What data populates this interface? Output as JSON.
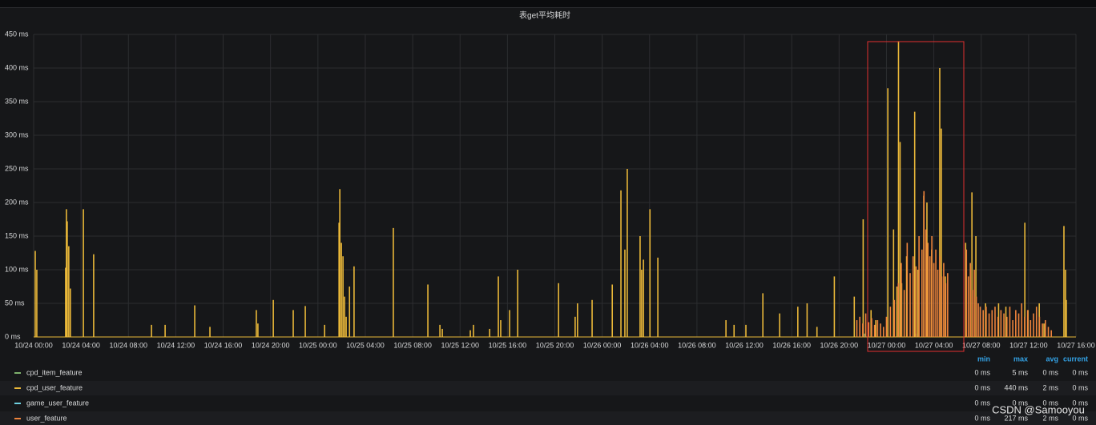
{
  "chart_data": {
    "type": "line",
    "title": "表get平均耗时",
    "xlim": [
      "10/24 00:00",
      "10/27 16:00"
    ],
    "xticks": [
      "10/24 00:00",
      "10/24 04:00",
      "10/24 08:00",
      "10/24 12:00",
      "10/24 16:00",
      "10/24 20:00",
      "10/25 00:00",
      "10/25 04:00",
      "10/25 08:00",
      "10/25 12:00",
      "10/25 16:00",
      "10/25 20:00",
      "10/26 00:00",
      "10/26 04:00",
      "10/26 08:00",
      "10/26 12:00",
      "10/26 16:00",
      "10/26 20:00",
      "10/27 00:00",
      "10/27 04:00",
      "10/27 08:00",
      "10/27 12:00",
      "10/27 16:00"
    ],
    "ylim": [
      0,
      450
    ],
    "yticks": [
      {
        "value": 0,
        "label": "0 ms"
      },
      {
        "value": 50,
        "label": "50 ms"
      },
      {
        "value": 100,
        "label": "100 ms"
      },
      {
        "value": 150,
        "label": "150 ms"
      },
      {
        "value": 200,
        "label": "200 ms"
      },
      {
        "value": 250,
        "label": "250 ms"
      },
      {
        "value": 300,
        "label": "300 ms"
      },
      {
        "value": 350,
        "label": "350 ms"
      },
      {
        "value": 400,
        "label": "400 ms"
      },
      {
        "value": 450,
        "label": "450 ms"
      }
    ],
    "grid": true,
    "legend_columns": [
      "min",
      "max",
      "avg",
      "current"
    ],
    "series": [
      {
        "name": "cpd_item_feature",
        "color": "#7eb26d",
        "stats": [
          "0 ms",
          "5 ms",
          "0 ms",
          "0 ms"
        ],
        "x": [
          "10/26 22:10",
          "10/27 02:30"
        ],
        "values": [
          5,
          5
        ]
      },
      {
        "name": "cpd_user_feature",
        "color": "#eab839",
        "stats": [
          "0 ms",
          "440 ms",
          "2 ms",
          "0 ms"
        ],
        "x": [
          "10/24 00:08",
          "10/24 00:16",
          "10/24 02:42",
          "10/24 02:46",
          "10/24 02:50",
          "10/24 02:58",
          "10/24 03:06",
          "10/24 04:12",
          "10/24 05:04",
          "10/24 09:57",
          "10/24 11:06",
          "10/24 13:36",
          "10/24 14:53",
          "10/24 18:48",
          "10/24 18:56",
          "10/24 20:14",
          "10/24 21:55",
          "10/24 22:56",
          "10/25 00:34",
          "10/25 01:47",
          "10/25 01:51",
          "10/25 01:59",
          "10/25 02:07",
          "10/25 02:15",
          "10/25 02:23",
          "10/25 02:40",
          "10/25 03:03",
          "10/25 06:22",
          "10/25 09:17",
          "10/25 10:18",
          "10/25 10:30",
          "10/25 12:52",
          "10/25 13:08",
          "10/25 14:30",
          "10/25 15:14",
          "10/25 15:26",
          "10/25 16:11",
          "10/25 16:52",
          "10/25 20:19",
          "10/25 21:43",
          "10/25 21:55",
          "10/25 23:09",
          "10/26 00:51",
          "10/26 01:35",
          "10/26 01:55",
          "10/26 02:07",
          "10/26 03:12",
          "10/26 03:20",
          "10/26 03:29",
          "10/26 04:02",
          "10/26 04:42",
          "10/26 10:27",
          "10/26 11:08",
          "10/26 12:08",
          "10/26 13:34",
          "10/26 14:59",
          "10/26 16:31",
          "10/26 17:18",
          "10/26 18:08",
          "10/26 19:36",
          "10/26 21:17",
          "10/26 22:02",
          "10/26 22:42",
          "10/26 23:06",
          "10/27 00:07",
          "10/27 00:36",
          "10/27 00:53",
          "10/27 01:01",
          "10/27 01:09",
          "10/27 01:17",
          "10/27 01:42",
          "10/27 02:23",
          "10/27 02:39",
          "10/27 03:09",
          "10/27 03:25",
          "10/27 03:49",
          "10/27 04:30",
          "10/27 04:38",
          "10/27 04:58",
          "10/27 06:41",
          "10/27 07:13",
          "10/27 07:33",
          "10/27 08:22",
          "10/27 09:28",
          "10/27 10:05",
          "10/27 11:41",
          "10/27 11:57",
          "10/27 12:54",
          "10/27 13:18",
          "10/27 14:59",
          "10/27 15:07",
          "10/27 15:11"
        ],
        "values": [
          128,
          100,
          103,
          190,
          172,
          135,
          72,
          190,
          123,
          18,
          18,
          47,
          15,
          40,
          20,
          55,
          40,
          46,
          18,
          170,
          220,
          140,
          120,
          60,
          30,
          75,
          105,
          162,
          78,
          18,
          12,
          10,
          18,
          12,
          90,
          25,
          40,
          100,
          80,
          30,
          50,
          55,
          78,
          218,
          130,
          250,
          150,
          100,
          115,
          190,
          118,
          25,
          18,
          18,
          65,
          35,
          45,
          50,
          15,
          90,
          60,
          175,
          40,
          25,
          370,
          160,
          75,
          440,
          290,
          80,
          120,
          335,
          100,
          210,
          200,
          130,
          400,
          310,
          90,
          140,
          215,
          150,
          50,
          50,
          45,
          170,
          40,
          50,
          20,
          165,
          100,
          55
        ]
      },
      {
        "name": "game_user_feature",
        "color": "#6ed0e0",
        "stats": [
          "0 ms",
          "0 ms",
          "0 ms",
          "0 ms"
        ],
        "x": [
          "10/24 00:00",
          "10/27 16:00"
        ],
        "values": [
          0,
          0
        ]
      },
      {
        "name": "user_feature",
        "color": "#ef843c",
        "stats": [
          "0 ms",
          "217 ms",
          "2 ms",
          "0 ms"
        ],
        "x": [
          "10/26 21:30",
          "10/26 21:45",
          "10/26 22:00",
          "10/26 22:15",
          "10/26 22:30",
          "10/26 22:45",
          "10/26 23:00",
          "10/26 23:15",
          "10/26 23:30",
          "10/26 23:45",
          "10/27 00:00",
          "10/27 00:20",
          "10/27 00:40",
          "10/27 01:00",
          "10/27 01:15",
          "10/27 01:30",
          "10/27 01:45",
          "10/27 02:00",
          "10/27 02:15",
          "10/27 02:30",
          "10/27 02:45",
          "10/27 03:00",
          "10/27 03:10",
          "10/27 03:20",
          "10/27 03:30",
          "10/27 03:40",
          "10/27 03:50",
          "10/27 04:00",
          "10/27 04:10",
          "10/27 04:20",
          "10/27 04:30",
          "10/27 04:40",
          "10/27 04:50",
          "10/27 05:00",
          "10/27 05:10",
          "10/27 06:45",
          "10/27 06:55",
          "10/27 07:05",
          "10/27 07:15",
          "10/27 07:25",
          "10/27 07:35",
          "10/27 07:45",
          "10/27 07:55",
          "10/27 08:10",
          "10/27 08:25",
          "10/27 08:40",
          "10/27 08:55",
          "10/27 09:10",
          "10/27 09:25",
          "10/27 09:40",
          "10/27 09:55",
          "10/27 10:10",
          "10/27 10:25",
          "10/27 10:40",
          "10/27 10:55",
          "10/27 11:10",
          "10/27 11:25",
          "10/27 11:40",
          "10/27 11:55",
          "10/27 12:10",
          "10/27 12:25",
          "10/27 12:40",
          "10/27 12:55",
          "10/27 13:10",
          "10/27 13:25",
          "10/27 13:40",
          "10/27 13:55"
        ],
        "values": [
          25,
          30,
          20,
          35,
          22,
          28,
          18,
          25,
          20,
          15,
          30,
          45,
          55,
          80,
          110,
          70,
          140,
          95,
          120,
          105,
          150,
          130,
          217,
          160,
          140,
          120,
          150,
          110,
          130,
          100,
          120,
          90,
          110,
          80,
          95,
          130,
          90,
          110,
          70,
          100,
          60,
          50,
          45,
          40,
          45,
          35,
          40,
          45,
          30,
          40,
          35,
          30,
          45,
          25,
          40,
          35,
          50,
          30,
          40,
          25,
          35,
          45,
          30,
          20,
          25,
          15,
          10
        ]
      }
    ],
    "watermark": "CSDN @Samooyou"
  }
}
